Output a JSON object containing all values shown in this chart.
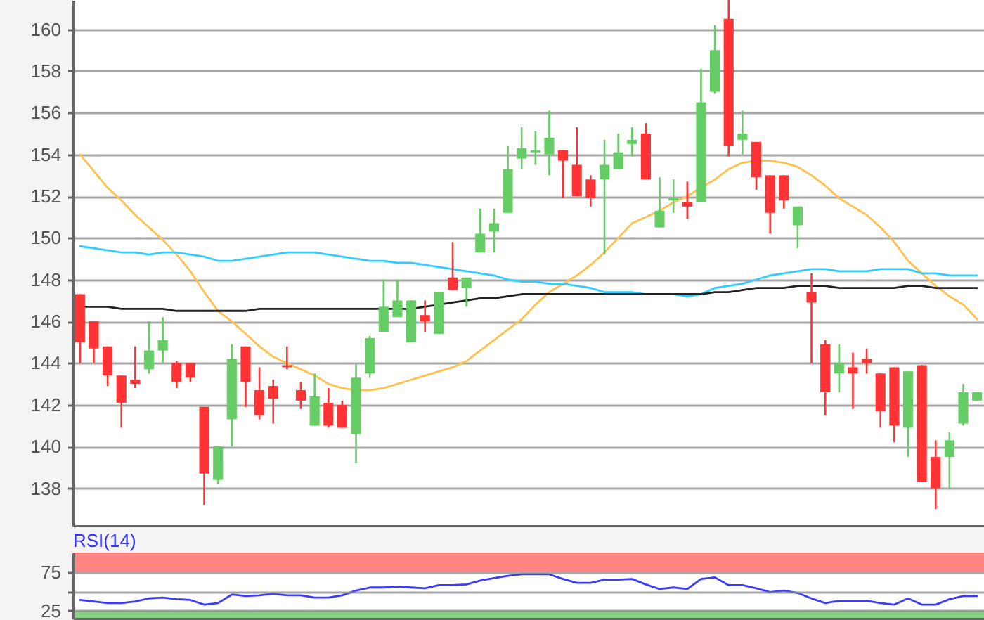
{
  "chart_data": [
    {
      "type": "candlestick",
      "categories": [
        null,
        null,
        null,
        null,
        null,
        null,
        null,
        null,
        null,
        null,
        null,
        null,
        null,
        null,
        null,
        null,
        null,
        null,
        null,
        null,
        null,
        null,
        null,
        null,
        null,
        null,
        null,
        null,
        null,
        null,
        null,
        null,
        null,
        null,
        null,
        null,
        null,
        null,
        null,
        null,
        null,
        null,
        null,
        null,
        null,
        null,
        null,
        null,
        null,
        null,
        null,
        null,
        null,
        null,
        null,
        null,
        null,
        null,
        null,
        null,
        null,
        null,
        null,
        null,
        null,
        null
      ],
      "ohlc": [
        [
          147.3,
          147.3,
          144.0,
          145.0
        ],
        [
          146.0,
          146.0,
          144.0,
          144.7
        ],
        [
          144.8,
          144.8,
          142.9,
          143.4
        ],
        [
          143.4,
          143.4,
          140.9,
          142.1
        ],
        [
          143.2,
          144.8,
          142.8,
          143.0
        ],
        [
          143.7,
          146.0,
          143.5,
          144.6
        ],
        [
          144.6,
          146.2,
          144.0,
          145.1
        ],
        [
          144.0,
          144.1,
          142.8,
          143.1
        ],
        [
          144.0,
          144.0,
          143.1,
          143.3
        ],
        [
          141.9,
          141.9,
          137.2,
          138.7
        ],
        [
          138.4,
          140.0,
          138.2,
          140.0
        ],
        [
          141.3,
          144.9,
          140.0,
          144.2
        ],
        [
          144.8,
          144.8,
          141.9,
          143.1
        ],
        [
          142.7,
          143.8,
          141.3,
          141.5
        ],
        [
          142.9,
          143.2,
          141.1,
          142.3
        ],
        [
          143.9,
          144.8,
          143.7,
          143.8
        ],
        [
          142.7,
          143.1,
          141.8,
          142.2
        ],
        [
          141.0,
          143.5,
          141.0,
          142.4
        ],
        [
          142.1,
          142.8,
          140.9,
          141.0
        ],
        [
          142.0,
          142.2,
          140.9,
          140.9
        ],
        [
          140.6,
          144.0,
          139.2,
          143.3
        ],
        [
          143.5,
          145.3,
          143.3,
          145.2
        ],
        [
          145.5,
          148.0,
          145.5,
          146.7
        ],
        [
          146.2,
          148.0,
          146.2,
          147.0
        ],
        [
          145.0,
          147.0,
          145.0,
          147.0
        ],
        [
          146.3,
          147.0,
          145.5,
          146.0
        ],
        [
          145.4,
          147.4,
          145.4,
          147.4
        ],
        [
          148.1,
          149.8,
          147.5,
          147.5
        ],
        [
          147.6,
          148.1,
          146.7,
          148.1
        ],
        [
          149.3,
          151.4,
          149.3,
          150.2
        ],
        [
          150.3,
          151.4,
          149.3,
          150.7
        ],
        [
          151.2,
          154.4,
          151.2,
          153.3
        ],
        [
          153.8,
          155.3,
          153.3,
          154.3
        ],
        [
          154.1,
          155.1,
          153.5,
          154.2
        ],
        [
          154.0,
          156.1,
          153.0,
          154.8
        ],
        [
          154.2,
          154.2,
          151.9,
          153.7
        ],
        [
          153.5,
          155.3,
          152.0,
          152.0
        ],
        [
          152.8,
          153.0,
          151.5,
          151.9
        ],
        [
          152.8,
          154.7,
          149.2,
          153.5
        ],
        [
          153.3,
          155.0,
          153.3,
          154.1
        ],
        [
          154.5,
          155.3,
          153.9,
          154.7
        ],
        [
          155.0,
          155.5,
          152.8,
          152.8
        ],
        [
          150.5,
          152.9,
          150.5,
          151.3
        ],
        [
          151.8,
          152.8,
          151.2,
          151.9
        ],
        [
          151.7,
          152.7,
          150.9,
          151.5
        ],
        [
          151.7,
          158.1,
          151.7,
          156.5
        ],
        [
          157.0,
          160.2,
          156.9,
          159.0
        ],
        [
          160.5,
          161.4,
          153.9,
          154.4
        ],
        [
          154.7,
          156.1,
          154.0,
          155.0
        ],
        [
          154.6,
          154.6,
          152.3,
          152.9
        ],
        [
          153.0,
          153.0,
          150.2,
          151.2
        ],
        [
          153.0,
          153.0,
          151.4,
          151.8
        ],
        [
          150.6,
          151.5,
          149.5,
          151.5
        ],
        [
          147.4,
          148.3,
          144.0,
          146.9
        ],
        [
          144.9,
          145.1,
          141.5,
          142.6
        ],
        [
          143.5,
          144.9,
          142.6,
          144.0
        ],
        [
          143.8,
          144.5,
          141.8,
          143.5
        ],
        [
          144.2,
          144.7,
          143.5,
          144.0
        ],
        [
          143.5,
          143.5,
          140.9,
          141.7
        ],
        [
          143.8,
          143.8,
          140.2,
          141.0
        ],
        [
          140.9,
          143.6,
          139.5,
          143.6
        ],
        [
          143.9,
          143.9,
          138.3,
          138.3
        ],
        [
          139.5,
          140.3,
          137.0,
          138.0
        ],
        [
          139.5,
          140.7,
          138.0,
          140.3
        ],
        [
          141.1,
          143.0,
          141.0,
          142.6
        ],
        [
          142.2,
          142.6,
          142.2,
          142.6
        ]
      ],
      "colors": [
        "#ff3333",
        "#ff3333",
        "#ff3333",
        "#ff3333",
        "#ff3333",
        "#66cc66",
        "#66cc66",
        "#ff3333",
        "#ff3333",
        "#ff3333",
        "#66cc66",
        "#66cc66",
        "#ff3333",
        "#ff3333",
        "#ff3333",
        "#ff3333",
        "#ff3333",
        "#66cc66",
        "#ff3333",
        "#ff3333",
        "#66cc66",
        "#66cc66",
        "#66cc66",
        "#66cc66",
        "#66cc66",
        "#ff3333",
        "#66cc66",
        "#ff3333",
        "#66cc66",
        "#66cc66",
        "#66cc66",
        "#66cc66",
        "#66cc66",
        "#66cc66",
        "#66cc66",
        "#ff3333",
        "#ff3333",
        "#ff3333",
        "#66cc66",
        "#66cc66",
        "#66cc66",
        "#ff3333",
        "#66cc66",
        "#66cc66",
        "#ff3333",
        "#66cc66",
        "#66cc66",
        "#ff3333",
        "#66cc66",
        "#ff3333",
        "#ff3333",
        "#ff3333",
        "#66cc66",
        "#ff3333",
        "#ff3333",
        "#66cc66",
        "#ff3333",
        "#ff3333",
        "#ff3333",
        "#ff3333",
        "#66cc66",
        "#ff3333",
        "#ff3333",
        "#66cc66",
        "#66cc66",
        "#66cc66"
      ],
      "series": [
        {
          "type": "line",
          "color": "#ffc04c",
          "values": [
            154.0,
            153.2,
            152.4,
            151.8,
            151.1,
            150.5,
            149.9,
            149.2,
            148.4,
            147.4,
            146.5,
            146.0,
            145.4,
            144.8,
            144.3,
            144.0,
            143.7,
            143.4,
            143.0,
            142.8,
            142.7,
            142.7,
            142.8,
            143.0,
            143.2,
            143.4,
            143.6,
            143.8,
            144.1,
            144.6,
            145.1,
            145.6,
            146.1,
            146.8,
            147.4,
            147.8,
            148.2,
            148.7,
            149.3,
            150.0,
            150.7,
            151.0,
            151.3,
            151.7,
            152.0,
            152.4,
            152.8,
            153.3,
            153.6,
            153.7,
            153.7,
            153.6,
            153.4,
            153.0,
            152.5,
            151.9,
            151.5,
            151.1,
            150.5,
            149.8,
            148.9,
            148.3,
            147.7,
            147.2,
            146.8,
            146.1
          ]
        },
        {
          "type": "line",
          "color": "#33ccff",
          "values": [
            149.6,
            149.5,
            149.4,
            149.3,
            149.3,
            149.2,
            149.3,
            149.3,
            149.2,
            149.1,
            148.9,
            148.9,
            149.0,
            149.1,
            149.2,
            149.3,
            149.3,
            149.3,
            149.2,
            149.1,
            149.0,
            148.9,
            148.9,
            148.8,
            148.8,
            148.7,
            148.6,
            148.5,
            148.4,
            148.3,
            148.2,
            148.0,
            147.9,
            147.9,
            147.8,
            147.8,
            147.7,
            147.6,
            147.4,
            147.4,
            147.4,
            147.3,
            147.3,
            147.3,
            147.2,
            147.3,
            147.6,
            147.7,
            147.8,
            148.0,
            148.2,
            148.3,
            148.4,
            148.5,
            148.5,
            148.4,
            148.4,
            148.4,
            148.5,
            148.5,
            148.5,
            148.3,
            148.3,
            148.2,
            148.2,
            148.2
          ]
        },
        {
          "type": "line",
          "color": "#222222",
          "values": [
            146.7,
            146.7,
            146.7,
            146.6,
            146.6,
            146.6,
            146.6,
            146.5,
            146.5,
            146.5,
            146.5,
            146.5,
            146.5,
            146.6,
            146.6,
            146.6,
            146.6,
            146.6,
            146.6,
            146.6,
            146.6,
            146.6,
            146.6,
            146.6,
            146.6,
            146.7,
            146.8,
            146.9,
            147.0,
            147.1,
            147.1,
            147.2,
            147.3,
            147.3,
            147.3,
            147.3,
            147.3,
            147.3,
            147.3,
            147.3,
            147.3,
            147.3,
            147.3,
            147.3,
            147.3,
            147.3,
            147.4,
            147.4,
            147.5,
            147.6,
            147.6,
            147.6,
            147.7,
            147.7,
            147.7,
            147.6,
            147.6,
            147.6,
            147.6,
            147.6,
            147.7,
            147.7,
            147.6,
            147.6,
            147.6,
            147.6
          ]
        }
      ],
      "ylim": [
        136.2,
        161.4
      ],
      "yticks": [
        138,
        140,
        142,
        144,
        146,
        148,
        150,
        152,
        154,
        156,
        158,
        160
      ],
      "grid": "y",
      "tick_labels": "y"
    },
    {
      "type": "line",
      "title": "RSI(14)",
      "categories": [
        null,
        null,
        null,
        null,
        null,
        null,
        null,
        null,
        null,
        null,
        null,
        null,
        null,
        null,
        null,
        null,
        null,
        null,
        null,
        null,
        null,
        null,
        null,
        null,
        null,
        null,
        null,
        null,
        null,
        null,
        null,
        null,
        null,
        null,
        null,
        null,
        null,
        null,
        null,
        null,
        null,
        null,
        null,
        null,
        null,
        null,
        null,
        null,
        null,
        null,
        null,
        null,
        null,
        null,
        null,
        null,
        null,
        null,
        null,
        null,
        null,
        null,
        null,
        null,
        null,
        null
      ],
      "color": "#3b3bff",
      "values": [
        39,
        37,
        35,
        35,
        37,
        41,
        42,
        40,
        39,
        33,
        35,
        46,
        44,
        45,
        47,
        45,
        45,
        42,
        42,
        45,
        51,
        55,
        55,
        56,
        55,
        54,
        58,
        58,
        59,
        64,
        67,
        70,
        72,
        72,
        72,
        66,
        61,
        61,
        65,
        65,
        66,
        59,
        53,
        55,
        53,
        66,
        68,
        58,
        58,
        54,
        49,
        51,
        48,
        41,
        35,
        38,
        38,
        38,
        35,
        33,
        41,
        33,
        33,
        40,
        44,
        44
      ],
      "ylim": [
        15,
        100
      ],
      "yticks": [
        25,
        {
          "value": 50,
          "label": null
        },
        75
      ],
      "bands": [
        {
          "axis": "y",
          "from": 75,
          "to": 100,
          "color": "#ff8585"
        },
        {
          "axis": "y",
          "from": 15,
          "to": 25,
          "color": "#85d185"
        }
      ],
      "grid": "y",
      "tick_labels": "y"
    }
  ]
}
